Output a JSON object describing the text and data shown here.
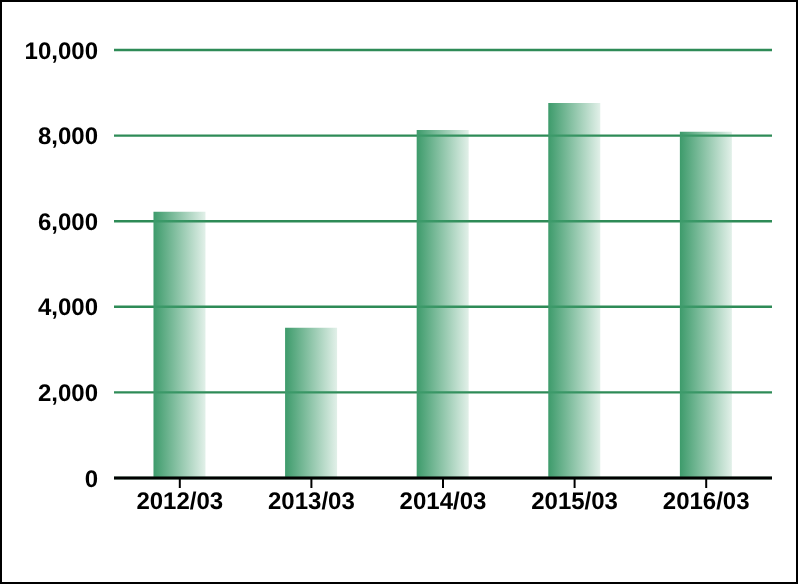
{
  "chart_data": {
    "type": "bar",
    "categories": [
      "2012/03",
      "2013/03",
      "2014/03",
      "2015/03",
      "2016/03"
    ],
    "values": [
      6220,
      3510,
      8130,
      8760,
      8090
    ],
    "color": "#3d9b6b",
    "ylim": [
      0,
      10000
    ],
    "yticks": [
      0,
      {
        "value": 2000,
        "label": "2,000"
      },
      {
        "value": 4000,
        "label": "4,000"
      },
      {
        "value": 6000,
        "label": "6,000"
      },
      {
        "value": 8000,
        "label": "8,000"
      },
      {
        "value": 10000,
        "label": "10,000"
      }
    ],
    "grid": "y"
  }
}
